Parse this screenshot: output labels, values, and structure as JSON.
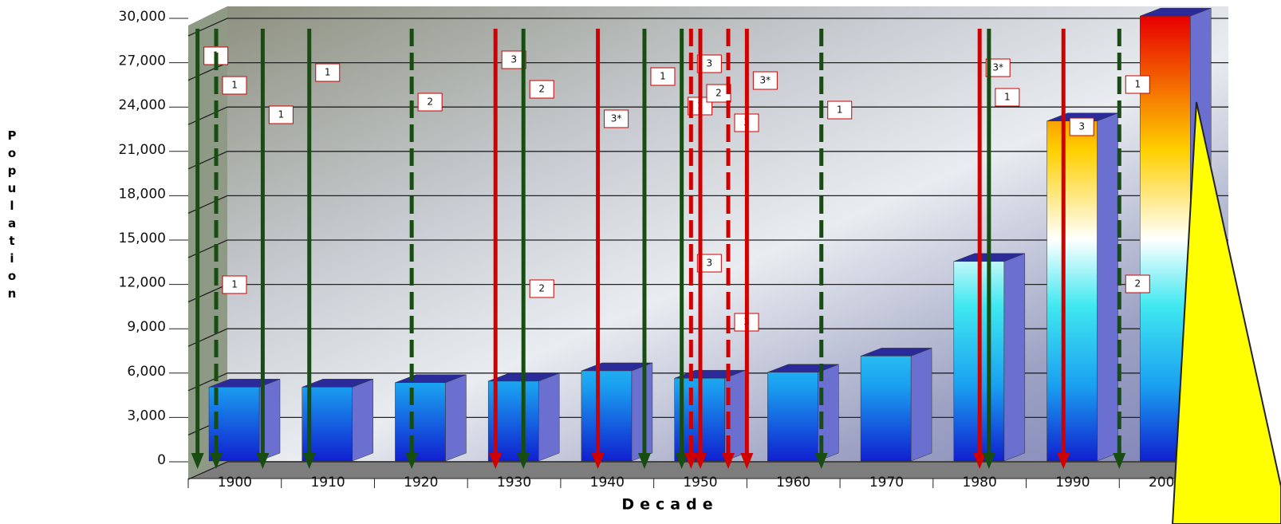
{
  "chart_data": {
    "type": "bar3d",
    "x_label": "Decade",
    "y_label": "Population",
    "categories": [
      "1900",
      "1910",
      "1920",
      "1930",
      "1940",
      "1950",
      "1960",
      "1970",
      "1980",
      "1990",
      "2000"
    ],
    "values": [
      5000,
      5000,
      5300,
      5400,
      6100,
      5600,
      6000,
      7100,
      13500,
      23000,
      30100
    ],
    "ylim": [
      0,
      30000
    ],
    "yticks": [
      0,
      {
        "value": 3000,
        "label": "3,000"
      },
      {
        "value": 6000,
        "label": "6,000"
      },
      {
        "value": 9000,
        "label": "9,000"
      },
      {
        "value": 12000,
        "label": "12,000"
      },
      {
        "value": 15000,
        "label": "15,000"
      },
      {
        "value": 18000,
        "label": "18,000"
      },
      {
        "value": 21000,
        "label": "21,000"
      },
      {
        "value": 24000,
        "label": "24,000"
      },
      {
        "value": 27000,
        "label": "27,000"
      },
      {
        "value": 30000,
        "label": "30,000"
      }
    ],
    "grid": true,
    "hurricane_colors": {
      "major": "#d00000",
      "minor": "#174d10"
    },
    "hurricanes": [
      {
        "year": 1896,
        "labels": [
          "1"
        ],
        "major": false,
        "dashed": false
      },
      {
        "year": 1898,
        "labels": [
          "1",
          "1"
        ],
        "major": false,
        "dashed": true
      },
      {
        "year": 1903,
        "labels": [
          "1"
        ],
        "major": false,
        "dashed": false
      },
      {
        "year": 1908,
        "labels": [
          "1"
        ],
        "major": false,
        "dashed": false
      },
      {
        "year": 1919,
        "labels": [
          "2"
        ],
        "major": false,
        "dashed": true
      },
      {
        "year": 1928,
        "labels": [
          "3"
        ],
        "major": true,
        "dashed": false
      },
      {
        "year": 1931,
        "labels": [
          "2",
          "2"
        ],
        "major": false,
        "dashed": false
      },
      {
        "year": 1939,
        "labels": [
          "3*"
        ],
        "major": true,
        "dashed": false
      },
      {
        "year": 1944,
        "labels": [
          "1"
        ],
        "major": false,
        "dashed": false
      },
      {
        "year": 1948,
        "labels": [
          "1"
        ],
        "major": false,
        "dashed": false
      },
      {
        "year": 1949,
        "labels": [
          "3",
          "3"
        ],
        "major": true,
        "dashed": true
      },
      {
        "year": 1950,
        "labels": [
          "2"
        ],
        "major": true,
        "dashed": false
      },
      {
        "year": 1953,
        "labels": [
          "3",
          "3"
        ],
        "major": true,
        "dashed": true
      },
      {
        "year": 1955,
        "labels": [
          "3*"
        ],
        "major": true,
        "dashed": false
      },
      {
        "year": 1963,
        "labels": [
          "1"
        ],
        "major": false,
        "dashed": true
      },
      {
        "year": 1980,
        "labels": [
          "3*"
        ],
        "major": true,
        "dashed": false
      },
      {
        "year": 1981,
        "labels": [
          "1"
        ],
        "major": false,
        "dashed": false
      },
      {
        "year": 1989,
        "labels": [
          "3"
        ],
        "major": true,
        "dashed": false
      },
      {
        "year": 1995,
        "labels": [
          "1",
          "2"
        ],
        "major": false,
        "dashed": true
      }
    ]
  }
}
